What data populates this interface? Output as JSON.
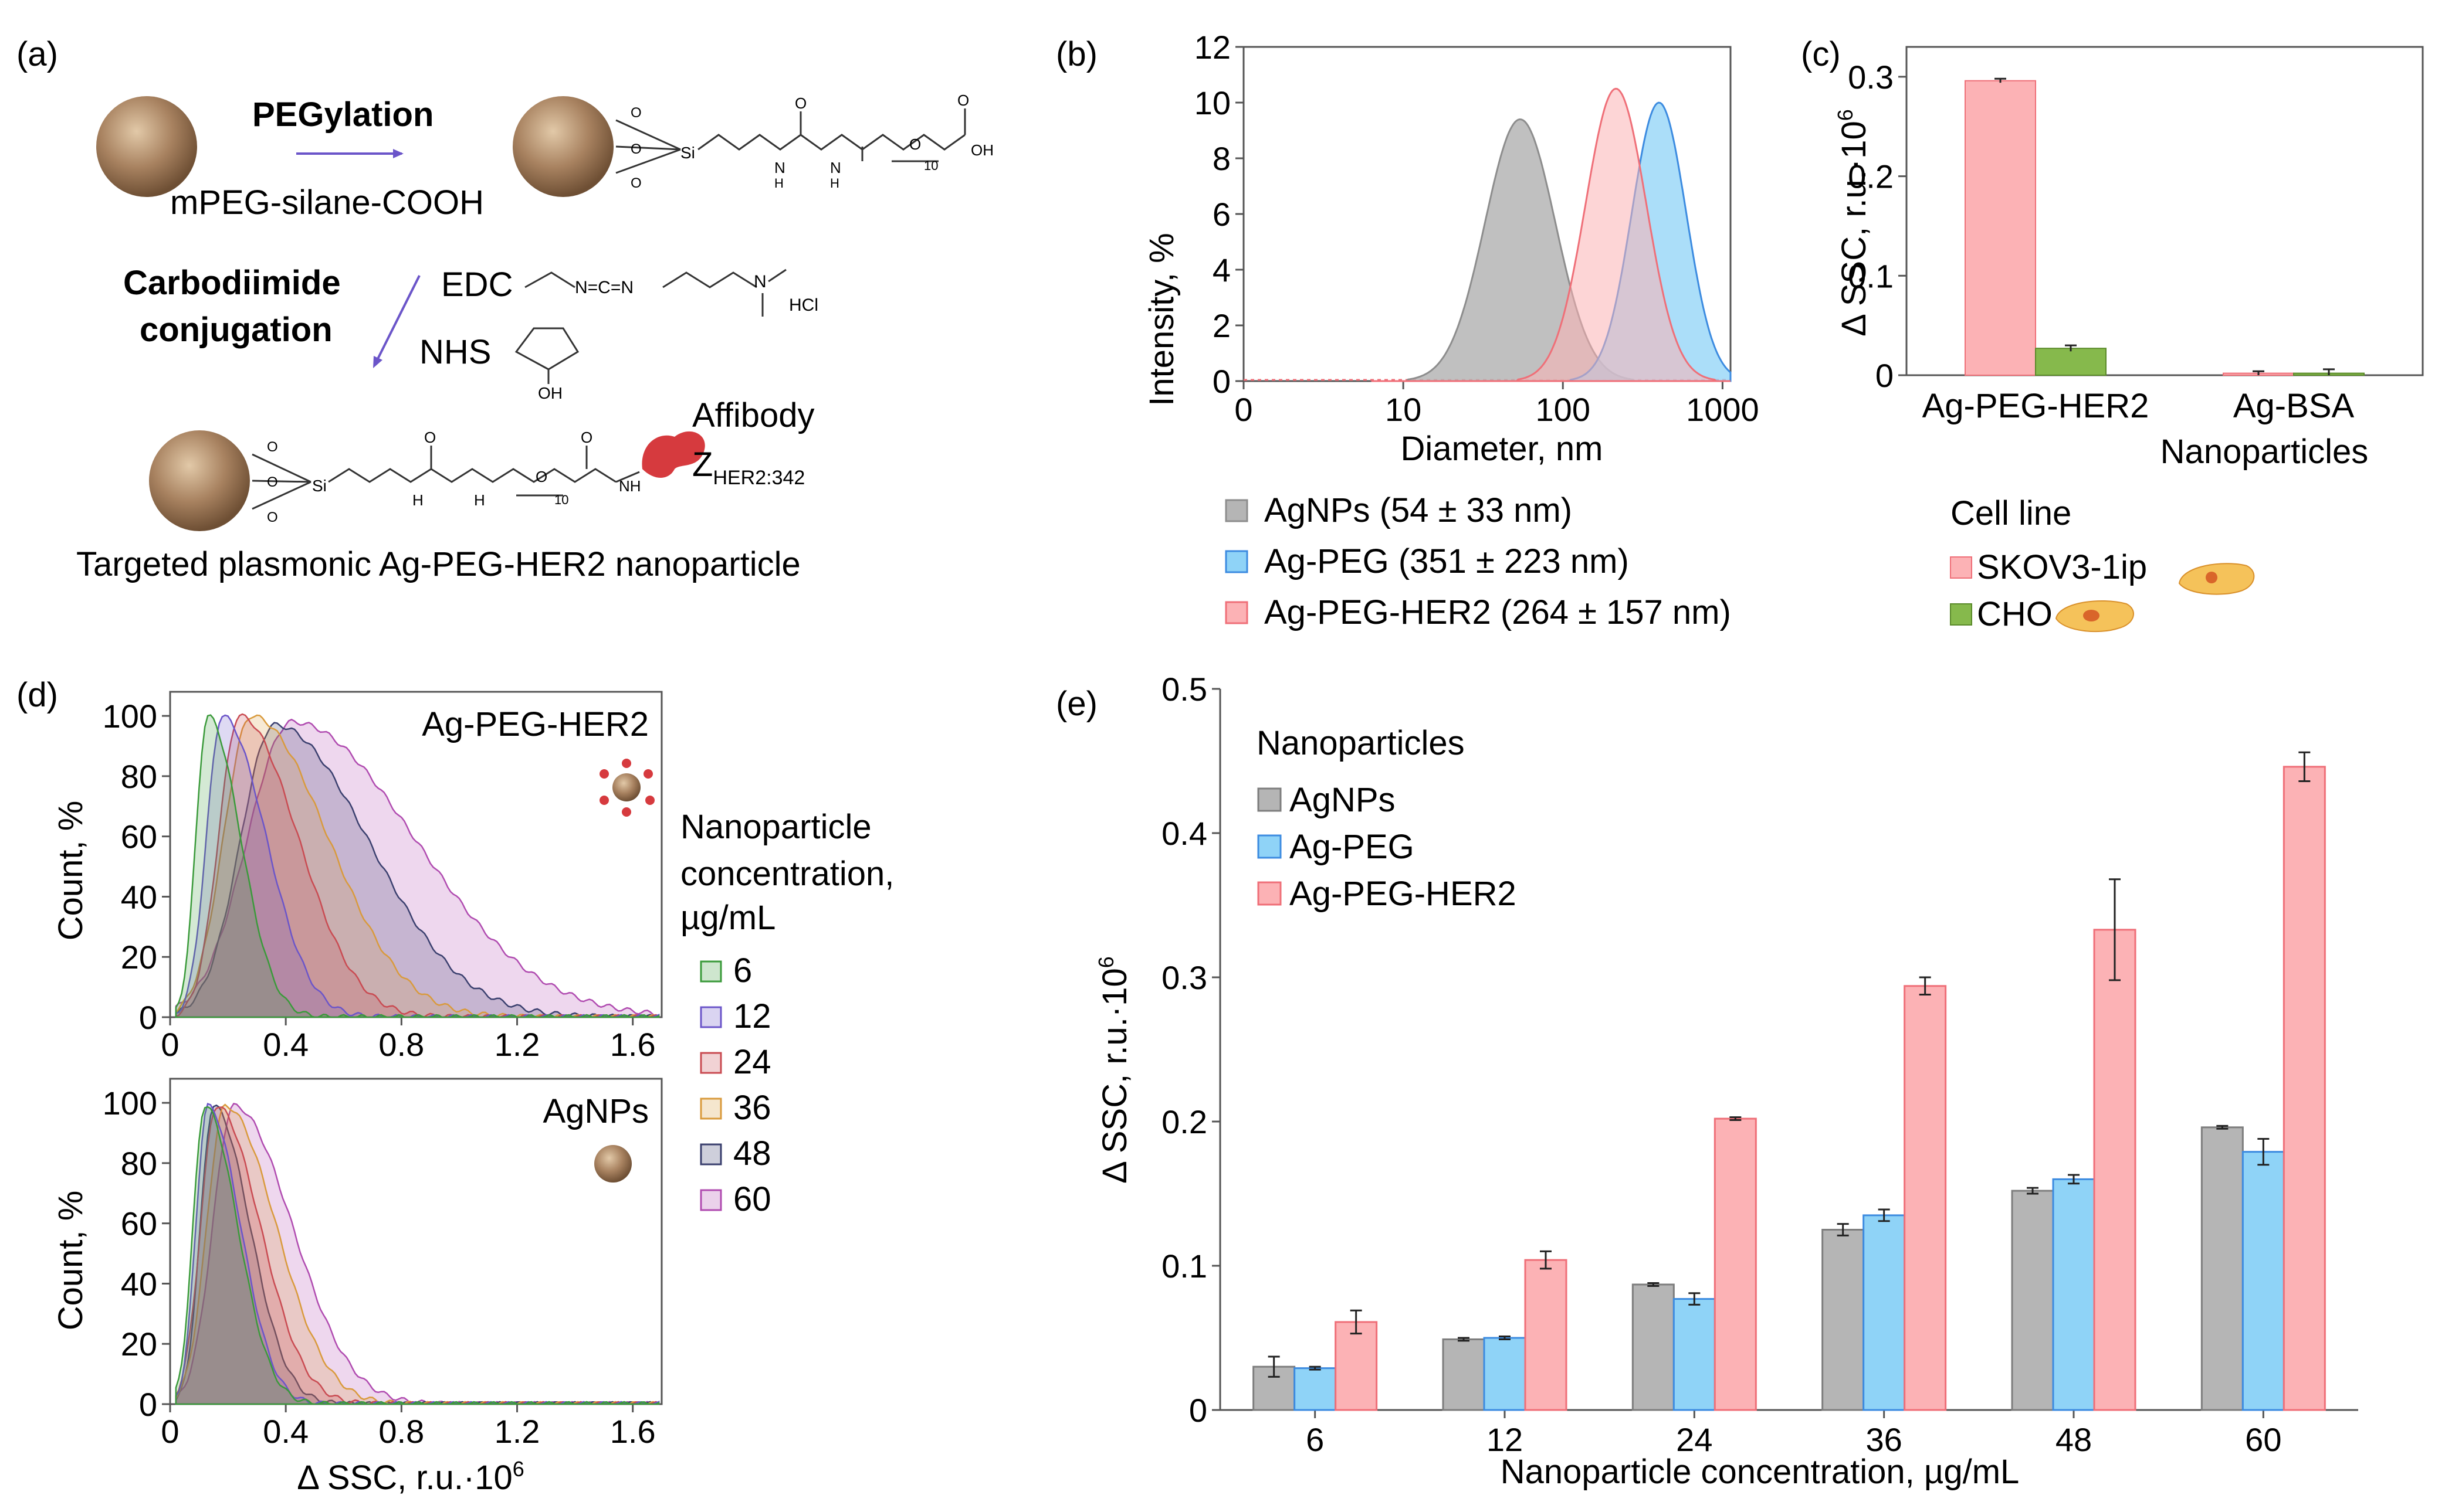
{
  "figure": {
    "panel_labels": {
      "a": "(a)",
      "b": "(b)",
      "c": "(c)",
      "d": "(d)",
      "e": "(e)"
    },
    "colors": {
      "agnps": "#b5b5b5",
      "agpeg": "#8fd3f7",
      "agpegher2": "#fcb2b5",
      "agpegher2_edge": "#ef6f78",
      "agpeg_edge": "#3c8be0",
      "agnps_edge": "#8d8d8d",
      "skov": "#fcb2b5",
      "cho": "#86b94c",
      "np_brown": "#8b6a4a",
      "affibody": "#d63a3e",
      "c6": "#3a9a3a",
      "c12": "#6b55c9",
      "c24": "#c94b52",
      "c36": "#d99a3c",
      "c48": "#3a3f6e",
      "c60": "#b04bb0"
    }
  },
  "panel_a": {
    "pegylation": "PEGylation",
    "mpeg": "mPEG-silane-COOH",
    "carbodiimide_1": "Carbodiimide",
    "carbodiimide_2": "conjugation",
    "edc": "EDC",
    "nhs": "NHS",
    "hcl": "HCl",
    "oh": "OH",
    "affibody": "Affibody",
    "z_main": "Z",
    "z_sub": "HER2:342",
    "caption": "Targeted plasmonic Ag-PEG-HER2 nanoparticle",
    "chem": {
      "si": "Si",
      "o": "O",
      "h": "H",
      "n": "N",
      "sub10": "10",
      "n_eq": "N=C=N",
      "oh_acid": "OH",
      "nh": "NH"
    }
  },
  "panel_b": {
    "chart_data": {
      "type": "area",
      "title": "",
      "xlabel": "Diameter, nm",
      "ylabel": "Intensity, %",
      "xscale": "log",
      "x_ticks": [
        "0",
        "10",
        "100",
        "1000"
      ],
      "y_ticks": [
        "0",
        "2",
        "4",
        "6",
        "8",
        "10",
        "12"
      ],
      "ylim": [
        0,
        12
      ],
      "series": [
        {
          "name": "AgNPs",
          "legend": "AgNPs (54 ± 33 nm)",
          "peak_nm": 54,
          "peak_value": 9.4,
          "sigma_log": 0.22
        },
        {
          "name": "Ag-PEG",
          "legend": "Ag-PEG (351 ± 223 nm)",
          "peak_nm": 400,
          "peak_value": 10.0,
          "sigma_log": 0.17
        },
        {
          "name": "Ag-PEG-HER2",
          "legend": "Ag-PEG-HER2 (264 ± 157 nm)",
          "peak_nm": 215,
          "peak_value": 10.5,
          "sigma_log": 0.19
        }
      ]
    }
  },
  "panel_c": {
    "chart_data": {
      "type": "bar",
      "categories": [
        "Ag-PEG-HER2",
        "Ag-BSA"
      ],
      "xlabel": "Nanoparticles",
      "ylabel": "Δ SSC, r.u.·10",
      "ylabel_sup": "6",
      "y_ticks": [
        "0",
        "0.1",
        "0.2",
        "0.3"
      ],
      "ylim": [
        0,
        0.33
      ],
      "legend_title": "Cell line",
      "series": [
        {
          "name": "SKOV3-1ip",
          "values": [
            0.296,
            0.002
          ],
          "errors": [
            0.002,
            0.002
          ]
        },
        {
          "name": "CHO",
          "values": [
            0.027,
            0.002
          ],
          "errors": [
            0.003,
            0.004
          ]
        }
      ]
    }
  },
  "panel_d": {
    "chart_data": {
      "type": "area",
      "xlabel": "Δ SSC, r.u.·10",
      "xlabel_sup": "6",
      "ylabel": "Count, %",
      "x_ticks": [
        "0",
        "0.4",
        "0.8",
        "1.2",
        "1.6"
      ],
      "y_ticks": [
        "0",
        "20",
        "40",
        "60",
        "80",
        "100"
      ],
      "xlim": [
        0,
        1.7
      ],
      "ylim": [
        0,
        108
      ],
      "legend_title_1": "Nanoparticle",
      "legend_title_2": "concentration,",
      "legend_title_3": "µg/mL",
      "legend": [
        "6",
        "12",
        "24",
        "36",
        "48",
        "60"
      ],
      "plots": [
        {
          "label": "Ag-PEG-HER2",
          "peaks": [
            0.13,
            0.18,
            0.24,
            0.28,
            0.36,
            0.42
          ],
          "widths": [
            0.09,
            0.12,
            0.16,
            0.21,
            0.26,
            0.34
          ],
          "maxima": [
            100,
            100,
            100,
            100,
            97,
            98
          ]
        },
        {
          "label": "AgNPs",
          "peaks": [
            0.12,
            0.13,
            0.16,
            0.19,
            0.15,
            0.22
          ],
          "widths": [
            0.09,
            0.09,
            0.12,
            0.14,
            0.1,
            0.16
          ],
          "maxima": [
            99,
            99,
            99,
            99,
            99,
            99
          ]
        }
      ]
    }
  },
  "panel_e": {
    "chart_data": {
      "type": "bar",
      "categories": [
        "6",
        "12",
        "24",
        "36",
        "48",
        "60"
      ],
      "xlabel": "Nanoparticle concentration, µg/mL",
      "ylabel": "Δ SSC, r.u.·10",
      "ylabel_sup": "6",
      "y_ticks": [
        "0",
        "0.1",
        "0.2",
        "0.3",
        "0.4",
        "0.5"
      ],
      "ylim": [
        0,
        0.5
      ],
      "legend_title": "Nanoparticles",
      "series": [
        {
          "name": "AgNPs",
          "values": [
            0.03,
            0.049,
            0.087,
            0.125,
            0.152,
            0.196
          ],
          "errors": [
            0.007,
            0.001,
            0.001,
            0.004,
            0.002,
            0.001
          ]
        },
        {
          "name": "Ag-PEG",
          "values": [
            0.029,
            0.05,
            0.077,
            0.135,
            0.16,
            0.179
          ],
          "errors": [
            0.001,
            0.001,
            0.004,
            0.004,
            0.003,
            0.009
          ]
        },
        {
          "name": "Ag-PEG-HER2",
          "values": [
            0.061,
            0.104,
            0.202,
            0.294,
            0.333,
            0.446
          ],
          "errors": [
            0.008,
            0.006,
            0.001,
            0.006,
            0.035,
            0.01
          ]
        }
      ]
    }
  }
}
